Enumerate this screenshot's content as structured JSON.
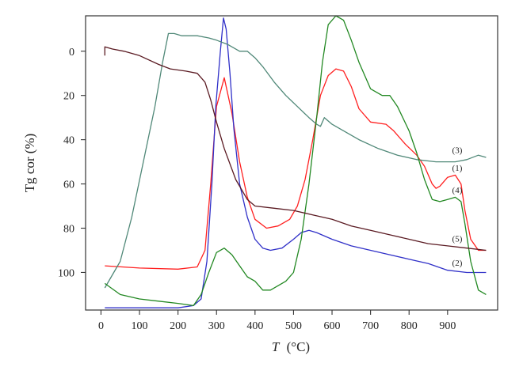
{
  "chart_data": {
    "type": "line",
    "xlabel_var": "T",
    "xlabel_unit": "(°C)",
    "ylabel": "Tg cor (%)",
    "xlim": [
      -40,
      1030
    ],
    "ylim": [
      117,
      -16
    ],
    "y_inverted": true,
    "x_ticks": [
      0,
      100,
      200,
      300,
      400,
      500,
      600,
      700,
      800,
      900
    ],
    "y_ticks": [
      0,
      20,
      40,
      60,
      80,
      100
    ],
    "grid": false,
    "legend": "none",
    "series": [
      {
        "name": "(1)",
        "color": "#ff2020",
        "points": [
          [
            10,
            97
          ],
          [
            100,
            98
          ],
          [
            200,
            98.5
          ],
          [
            250,
            97.5
          ],
          [
            270,
            90
          ],
          [
            285,
            60
          ],
          [
            300,
            25
          ],
          [
            320,
            12
          ],
          [
            340,
            28
          ],
          [
            360,
            50
          ],
          [
            380,
            66
          ],
          [
            400,
            76
          ],
          [
            430,
            80
          ],
          [
            460,
            79
          ],
          [
            490,
            76
          ],
          [
            510,
            70
          ],
          [
            530,
            58
          ],
          [
            550,
            40
          ],
          [
            570,
            20
          ],
          [
            590,
            11
          ],
          [
            610,
            8
          ],
          [
            630,
            9
          ],
          [
            650,
            16
          ],
          [
            670,
            26
          ],
          [
            700,
            32
          ],
          [
            740,
            33
          ],
          [
            760,
            36
          ],
          [
            790,
            42
          ],
          [
            820,
            47
          ],
          [
            840,
            52
          ],
          [
            860,
            60
          ],
          [
            870,
            62
          ],
          [
            880,
            61
          ],
          [
            900,
            57
          ],
          [
            920,
            56
          ],
          [
            935,
            60
          ],
          [
            945,
            72
          ],
          [
            960,
            85
          ],
          [
            980,
            90
          ],
          [
            1000,
            90
          ]
        ]
      },
      {
        "name": "(2)",
        "color": "#3030c8",
        "points": [
          [
            10,
            116
          ],
          [
            100,
            116
          ],
          [
            200,
            116
          ],
          [
            240,
            115
          ],
          [
            260,
            112
          ],
          [
            275,
            95
          ],
          [
            288,
            60
          ],
          [
            298,
            25
          ],
          [
            310,
            0
          ],
          [
            318,
            -15
          ],
          [
            325,
            -10
          ],
          [
            335,
            10
          ],
          [
            345,
            35
          ],
          [
            360,
            60
          ],
          [
            380,
            75
          ],
          [
            400,
            85
          ],
          [
            420,
            89
          ],
          [
            440,
            90
          ],
          [
            470,
            89
          ],
          [
            500,
            85
          ],
          [
            520,
            82
          ],
          [
            540,
            81
          ],
          [
            560,
            82
          ],
          [
            600,
            85
          ],
          [
            650,
            88
          ],
          [
            700,
            90
          ],
          [
            750,
            92
          ],
          [
            800,
            94
          ],
          [
            850,
            96
          ],
          [
            900,
            99
          ],
          [
            950,
            100
          ],
          [
            1000,
            100
          ]
        ]
      },
      {
        "name": "(3)",
        "color": "#508878",
        "points": [
          [
            10,
            107
          ],
          [
            50,
            95
          ],
          [
            80,
            75
          ],
          [
            110,
            50
          ],
          [
            140,
            25
          ],
          [
            160,
            5
          ],
          [
            175,
            -8
          ],
          [
            190,
            -8
          ],
          [
            210,
            -7
          ],
          [
            250,
            -7
          ],
          [
            280,
            -6
          ],
          [
            300,
            -5
          ],
          [
            330,
            -3
          ],
          [
            360,
            0
          ],
          [
            380,
            0
          ],
          [
            400,
            3
          ],
          [
            420,
            7
          ],
          [
            450,
            14
          ],
          [
            480,
            20
          ],
          [
            510,
            25
          ],
          [
            540,
            30
          ],
          [
            560,
            33
          ],
          [
            570,
            34
          ],
          [
            580,
            30
          ],
          [
            600,
            33
          ],
          [
            630,
            36
          ],
          [
            670,
            40
          ],
          [
            720,
            44
          ],
          [
            770,
            47
          ],
          [
            820,
            49
          ],
          [
            870,
            50
          ],
          [
            920,
            50
          ],
          [
            950,
            49
          ],
          [
            980,
            47
          ],
          [
            1000,
            48
          ]
        ]
      },
      {
        "name": "(4)",
        "color": "#228822",
        "points": [
          [
            10,
            105
          ],
          [
            50,
            110
          ],
          [
            100,
            112
          ],
          [
            150,
            113
          ],
          [
            200,
            114
          ],
          [
            240,
            115
          ],
          [
            260,
            110
          ],
          [
            280,
            100
          ],
          [
            300,
            91
          ],
          [
            320,
            89
          ],
          [
            340,
            92
          ],
          [
            360,
            97
          ],
          [
            380,
            102
          ],
          [
            400,
            104
          ],
          [
            420,
            108
          ],
          [
            440,
            108
          ],
          [
            460,
            106
          ],
          [
            480,
            104
          ],
          [
            500,
            100
          ],
          [
            520,
            85
          ],
          [
            540,
            60
          ],
          [
            560,
            30
          ],
          [
            575,
            5
          ],
          [
            590,
            -12
          ],
          [
            610,
            -16
          ],
          [
            630,
            -14
          ],
          [
            650,
            -5
          ],
          [
            670,
            5
          ],
          [
            700,
            17
          ],
          [
            730,
            20
          ],
          [
            750,
            20
          ],
          [
            770,
            25
          ],
          [
            800,
            36
          ],
          [
            820,
            46
          ],
          [
            840,
            58
          ],
          [
            860,
            67
          ],
          [
            880,
            68
          ],
          [
            900,
            67
          ],
          [
            920,
            66
          ],
          [
            935,
            68
          ],
          [
            945,
            78
          ],
          [
            960,
            95
          ],
          [
            980,
            108
          ],
          [
            1000,
            110
          ]
        ]
      },
      {
        "name": "(5)",
        "color": "#5a1a22",
        "points": [
          [
            10,
            2
          ],
          [
            10,
            -2
          ],
          [
            30,
            -1
          ],
          [
            60,
            0
          ],
          [
            100,
            2
          ],
          [
            150,
            6
          ],
          [
            180,
            8
          ],
          [
            220,
            9
          ],
          [
            250,
            10
          ],
          [
            270,
            14
          ],
          [
            285,
            22
          ],
          [
            300,
            32
          ],
          [
            320,
            44
          ],
          [
            350,
            58
          ],
          [
            380,
            67
          ],
          [
            400,
            70
          ],
          [
            450,
            71
          ],
          [
            500,
            72
          ],
          [
            550,
            74
          ],
          [
            600,
            76
          ],
          [
            650,
            79
          ],
          [
            700,
            81
          ],
          [
            750,
            83
          ],
          [
            800,
            85
          ],
          [
            850,
            87
          ],
          [
            900,
            88
          ],
          [
            950,
            89
          ],
          [
            1000,
            90
          ]
        ]
      }
    ],
    "curve_labels": [
      {
        "text": "(3)",
        "x": 925,
        "y": 46
      },
      {
        "text": "(1)",
        "x": 925,
        "y": 54
      },
      {
        "text": "(4)",
        "x": 925,
        "y": 64
      },
      {
        "text": "(5)",
        "x": 925,
        "y": 86
      },
      {
        "text": "(2)",
        "x": 925,
        "y": 97
      }
    ]
  }
}
